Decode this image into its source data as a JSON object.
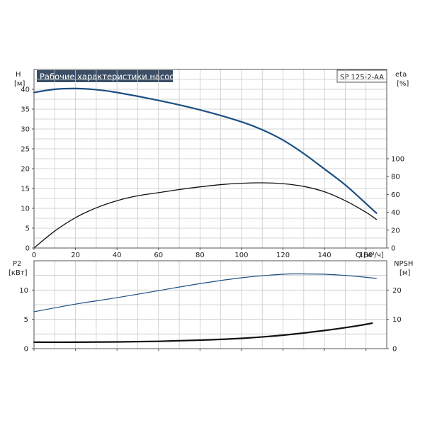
{
  "chart_data": [
    {
      "type": "line",
      "title": "Рабочие характеристики насоса",
      "model_label": "SP 125-2-AA",
      "x_axis": {
        "label": "Q [м³/ч]",
        "range": [
          0,
          170
        ],
        "ticks": [
          0,
          20,
          40,
          60,
          80,
          100,
          120,
          140,
          160
        ]
      },
      "y_left": {
        "name": "H",
        "unit": "[м]",
        "range": [
          0,
          45
        ],
        "ticks": [
          0,
          5,
          10,
          15,
          20,
          25,
          30,
          35,
          40
        ]
      },
      "y_right": {
        "name": "eta",
        "unit": "[%]",
        "range": [
          0,
          100
        ],
        "ticks": [
          0,
          20,
          40,
          60,
          80,
          100
        ]
      },
      "grid": true,
      "series": [
        {
          "axis": "left",
          "color": "#1c4f82",
          "x": [
            0,
            10,
            20,
            30,
            40,
            60,
            80,
            100,
            110,
            120,
            130,
            140,
            150,
            160,
            165
          ],
          "values": [
            39.2,
            40.0,
            40.2,
            39.9,
            39.2,
            37.2,
            34.8,
            31.8,
            29.8,
            27.2,
            23.8,
            19.9,
            15.9,
            11.2,
            8.8
          ]
        },
        {
          "axis": "right",
          "color": "#111111",
          "x": [
            0,
            10,
            20,
            30,
            40,
            50,
            60,
            70,
            80,
            90,
            100,
            110,
            120,
            130,
            140,
            150,
            160,
            165
          ],
          "values": [
            0,
            19,
            34,
            45,
            53,
            58.5,
            62,
            65.5,
            68.5,
            71,
            72.5,
            73,
            72,
            69,
            63,
            53,
            40,
            32
          ]
        }
      ]
    },
    {
      "type": "line",
      "x_axis": {
        "range": [
          0,
          170
        ]
      },
      "y_left": {
        "name": "P2",
        "unit": "[кВт]",
        "range": [
          0,
          15
        ],
        "ticks": [
          0,
          5,
          10
        ]
      },
      "y_right": {
        "name": "NPSH",
        "unit": "[м]",
        "range": [
          0,
          30
        ],
        "ticks": [
          0,
          10,
          20
        ]
      },
      "grid": true,
      "series": [
        {
          "axis": "left",
          "color": "#1c4f82",
          "x": [
            0,
            20,
            40,
            60,
            80,
            100,
            120,
            130,
            140,
            150,
            165
          ],
          "values": [
            6.3,
            7.6,
            8.7,
            9.9,
            11.1,
            12.1,
            12.7,
            12.75,
            12.7,
            12.5,
            12.0
          ]
        },
        {
          "axis": "right",
          "color": "#111111",
          "x": [
            0,
            20,
            40,
            60,
            80,
            100,
            120,
            140,
            155,
            163
          ],
          "values": [
            2.2,
            2.2,
            2.3,
            2.5,
            2.9,
            3.5,
            4.6,
            6.2,
            7.7,
            8.7
          ]
        }
      ]
    }
  ]
}
